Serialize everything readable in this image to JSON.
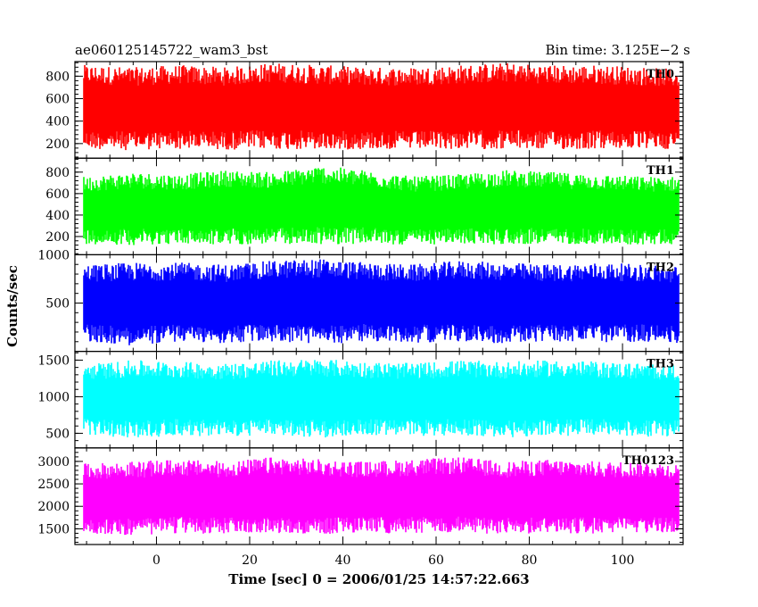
{
  "chart_data": {
    "type": "line",
    "title_left": "ae060125145722_wam3_bst",
    "title_right": "Bin time: 3.125E−2 s",
    "xlabel": "Time [sec] 0 = 2006/01/25 14:57:22.663",
    "ylabel": "Counts/sec",
    "xlim": [
      -17.5,
      113
    ],
    "xticks": [
      0,
      20,
      40,
      60,
      80,
      100
    ],
    "bin_time": 0.03125,
    "data_range": [
      -15.5,
      112
    ],
    "series": [
      {
        "name": "TH0",
        "color": "#ff0000",
        "ylim": [
          70,
          930
        ],
        "yticks": [
          200,
          400,
          600,
          800
        ],
        "envelope": {
          "x": [
            -15,
            -5,
            5,
            15,
            25,
            35,
            45,
            55,
            65,
            75,
            85,
            95,
            105,
            112
          ],
          "low": [
            150,
            140,
            150,
            145,
            150,
            140,
            150,
            145,
            150,
            150,
            145,
            150,
            150,
            150
          ],
          "high": [
            900,
            880,
            900,
            880,
            920,
            900,
            880,
            880,
            900,
            920,
            900,
            900,
            880,
            860
          ]
        }
      },
      {
        "name": "TH1",
        "color": "#00ff00",
        "ylim": [
          30,
          930
        ],
        "yticks": [
          200,
          400,
          600,
          800
        ],
        "envelope": {
          "x": [
            -15,
            -5,
            5,
            15,
            25,
            35,
            45,
            55,
            65,
            75,
            85,
            95,
            105,
            112
          ],
          "low": [
            130,
            120,
            130,
            120,
            130,
            125,
            130,
            120,
            130,
            125,
            130,
            130,
            120,
            130
          ],
          "high": [
            760,
            800,
            780,
            820,
            800,
            860,
            820,
            760,
            780,
            820,
            800,
            780,
            760,
            760
          ]
        }
      },
      {
        "name": "TH2",
        "color": "#0000ff",
        "ylim": [
          0,
          1000
        ],
        "yticks": [
          500,
          1000
        ],
        "envelope": {
          "x": [
            -15,
            -5,
            5,
            15,
            25,
            35,
            45,
            55,
            65,
            75,
            85,
            95,
            105,
            112
          ],
          "low": [
            100,
            60,
            100,
            80,
            100,
            70,
            100,
            90,
            100,
            80,
            100,
            90,
            100,
            80
          ],
          "high": [
            900,
            920,
            920,
            900,
            940,
            960,
            920,
            900,
            940,
            920,
            900,
            920,
            900,
            880
          ]
        }
      },
      {
        "name": "TH3",
        "color": "#00ffff",
        "ylim": [
          300,
          1620
        ],
        "yticks": [
          500,
          1000,
          1500
        ],
        "envelope": {
          "x": [
            -15,
            -5,
            5,
            15,
            25,
            35,
            45,
            55,
            65,
            75,
            85,
            95,
            105,
            112
          ],
          "low": [
            480,
            430,
            470,
            450,
            470,
            440,
            470,
            460,
            470,
            440,
            460,
            470,
            450,
            460
          ],
          "high": [
            1450,
            1500,
            1480,
            1460,
            1500,
            1520,
            1480,
            1460,
            1500,
            1480,
            1500,
            1480,
            1460,
            1450
          ]
        }
      },
      {
        "name": "TH0123",
        "color": "#ff00ff",
        "ylim": [
          1150,
          3300
        ],
        "yticks": [
          1500,
          2000,
          2500,
          3000
        ],
        "envelope": {
          "x": [
            -15,
            -5,
            5,
            15,
            25,
            35,
            45,
            55,
            65,
            75,
            85,
            95,
            105,
            112
          ],
          "low": [
            1400,
            1350,
            1400,
            1380,
            1400,
            1380,
            1400,
            1390,
            1400,
            1380,
            1400,
            1390,
            1400,
            1400
          ],
          "high": [
            2950,
            3000,
            3050,
            3000,
            3100,
            3050,
            3000,
            3050,
            3100,
            3000,
            3050,
            3000,
            3000,
            2950
          ]
        }
      }
    ]
  }
}
